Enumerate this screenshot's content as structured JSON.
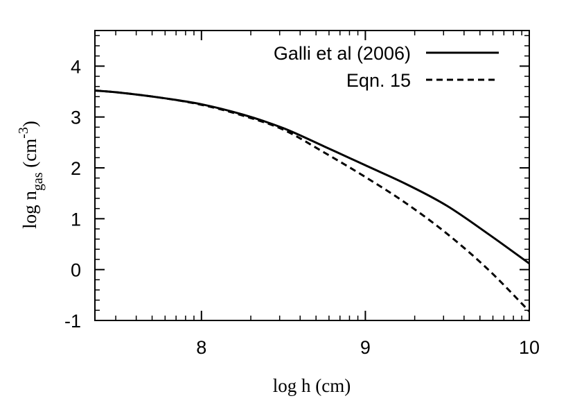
{
  "chart_data": {
    "type": "line",
    "xlabel": "log h (cm)",
    "ylabel": {
      "base": "log n",
      "subscript": "gas",
      "unit_open": " (cm",
      "superscript": "-3",
      "unit_close": ")"
    },
    "xlim": [
      7.35,
      10.0
    ],
    "ylim": [
      -1.0,
      4.7
    ],
    "xticks": [
      8,
      9,
      10
    ],
    "xtick_labels": [
      "8",
      "9",
      "10"
    ],
    "yticks": [
      -1,
      0,
      1,
      2,
      3,
      4
    ],
    "ytick_labels": [
      "-1",
      "0",
      "1",
      "2",
      "3",
      "4"
    ],
    "grid": false,
    "legend_position": "top-right",
    "series": [
      {
        "name": "Galli et al (2006)",
        "style": "solid",
        "color": "#000000",
        "x": [
          7.35,
          7.5,
          7.75,
          8.0,
          8.25,
          8.5,
          8.75,
          9.0,
          9.25,
          9.5,
          9.75,
          10.0
        ],
        "y": [
          3.52,
          3.48,
          3.38,
          3.25,
          3.05,
          2.78,
          2.42,
          2.05,
          1.68,
          1.25,
          0.7,
          0.12
        ]
      },
      {
        "name": "Eqn. 15",
        "style": "dashed",
        "color": "#000000",
        "x": [
          7.35,
          7.5,
          7.75,
          8.0,
          8.25,
          8.5,
          8.75,
          9.0,
          9.25,
          9.5,
          9.75,
          10.0
        ],
        "y": [
          3.52,
          3.48,
          3.38,
          3.24,
          3.03,
          2.75,
          2.3,
          1.82,
          1.3,
          0.7,
          0.0,
          -0.82
        ]
      }
    ]
  }
}
